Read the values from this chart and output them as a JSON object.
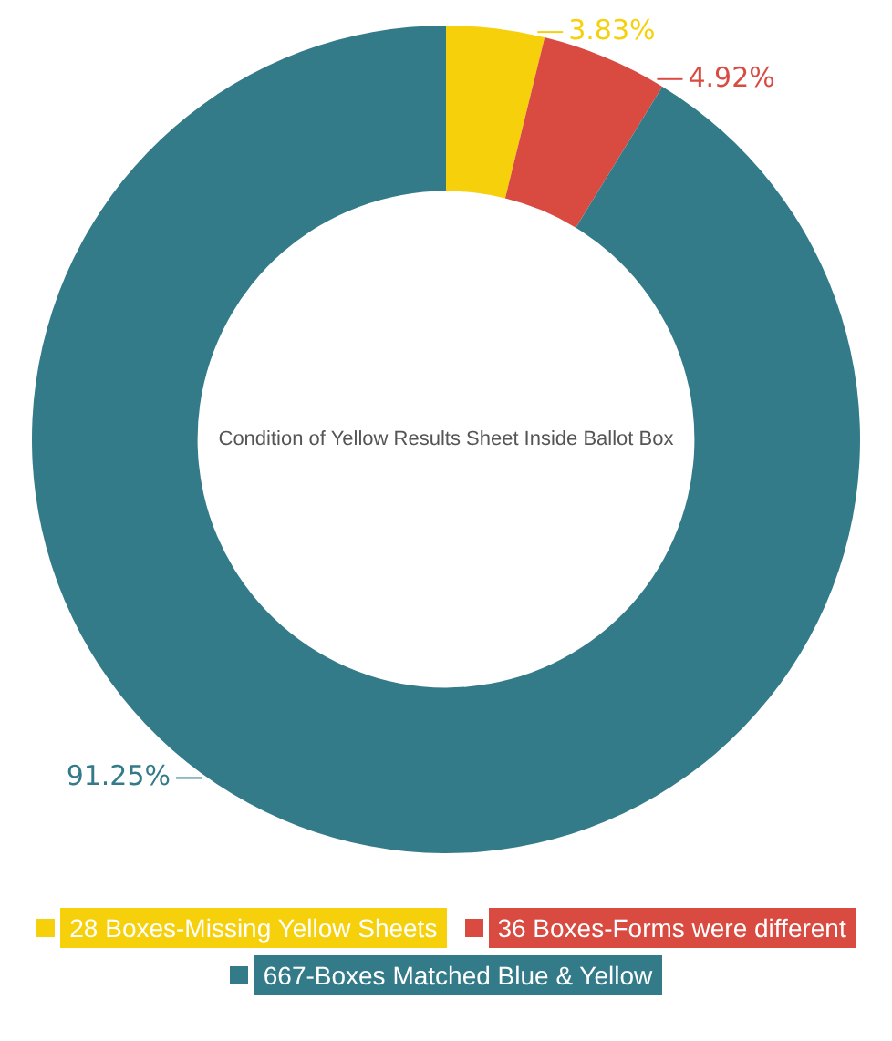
{
  "chart_data": {
    "type": "donut",
    "title": "Condition of Yellow Results Sheet Inside Ballot Box",
    "categories": [
      "28 Boxes-Missing Yellow Sheets",
      "36 Boxes-Forms were different",
      "667-Boxes Matched Blue & Yellow"
    ],
    "values": [
      3.83,
      4.92,
      91.25
    ],
    "colors": [
      "#f6d10b",
      "#d94a40",
      "#347b89"
    ],
    "value_labels": [
      "3.83%",
      "4.92%",
      "91.25%"
    ],
    "legend": "bottom"
  }
}
